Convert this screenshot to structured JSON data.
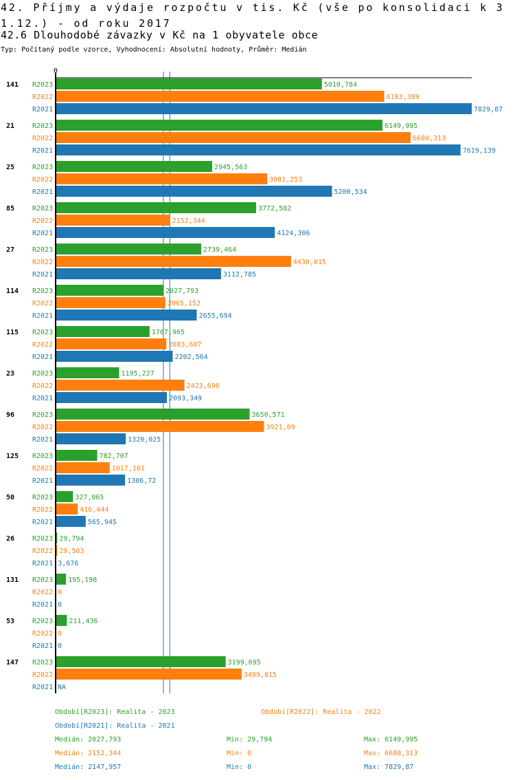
{
  "header": {
    "title": "42. Příjmy a výdaje rozpočtu v tis. Kč (vše po konsolidaci k 31.12.) - od roku 2017",
    "subtitle": "42.6 Dlouhodobé závazky v Kč na 1 obyvatele obce",
    "info": "Typ: Počítaný podle vzorce, Vyhodnocení: Absolutní hodnoty, Průměr: Medián"
  },
  "chart_data": {
    "type": "bar",
    "orientation": "horizontal",
    "axis_zero_label": "0",
    "xlim": [
      0,
      7829.87
    ],
    "categories": [
      "141",
      "21",
      "25",
      "85",
      "27",
      "114",
      "115",
      "23",
      "96",
      "125",
      "50",
      "26",
      "131",
      "53",
      "147"
    ],
    "series": [
      {
        "name": "R2023",
        "color": "#2ca02c",
        "values": [
          5010.784,
          6149.995,
          2945.563,
          3772.582,
          2739.464,
          2027.793,
          1767.965,
          1195.227,
          3650.571,
          782.707,
          327.065,
          29.794,
          195.198,
          211.436,
          3199.695
        ],
        "labels": [
          "5010,784",
          "6149,995",
          "2945,563",
          "3772,582",
          "2739,464",
          "2027,793",
          "1767,965",
          "1195,227",
          "3650,571",
          "782,707",
          "327,065",
          "29,794",
          "195,198",
          "211,436",
          "3199,695"
        ]
      },
      {
        "name": "R2022",
        "color": "#ff7f0e",
        "values": [
          6183.389,
          6680.313,
          3981.253,
          2152.344,
          4430.015,
          2065.152,
          2083.687,
          2423.696,
          3921.09,
          1017.101,
          416.444,
          29.503,
          0,
          0,
          3499.815
        ],
        "labels": [
          "6183,389",
          "6680,313",
          "3981,253",
          "2152,344",
          "4430,015",
          "2065,152",
          "2083,687",
          "2423,696",
          "3921,09",
          "1017,101",
          "416,444",
          "29,503",
          "0",
          "0",
          "3499,815"
        ]
      },
      {
        "name": "R2021",
        "color": "#1f77b4",
        "values": [
          7829.87,
          7619.139,
          5200.534,
          4124.306,
          3112.785,
          2655.694,
          2202.564,
          2093.349,
          1320.025,
          1306.72,
          565.945,
          3.676,
          0,
          0,
          null
        ],
        "labels": [
          "7829,87",
          "7619,139",
          "5200,534",
          "4124,306",
          "3112,785",
          "2655,694",
          "2202,564",
          "2093,349",
          "1320,025",
          "1306,72",
          "565,945",
          "3,676",
          "0",
          "0",
          "NA"
        ]
      }
    ],
    "median_lines": [
      2027.793,
      2147.957
    ]
  },
  "legend": {
    "periods": [
      "Období[R2023]: Realita - 2023",
      "Období[R2022]: Realita - 2022",
      "Období[R2021]: Realita - 2021"
    ],
    "stats": [
      {
        "median": "Medián: 2027,793",
        "min": "Min: 29,794",
        "max": "Max: 6149,995"
      },
      {
        "median": "Medián: 2152,344",
        "min": "Min: 0",
        "max": "Max: 6680,313"
      },
      {
        "median": "Medián: 2147,957",
        "min": "Min: 0",
        "max": "Max: 7829,87"
      }
    ]
  }
}
